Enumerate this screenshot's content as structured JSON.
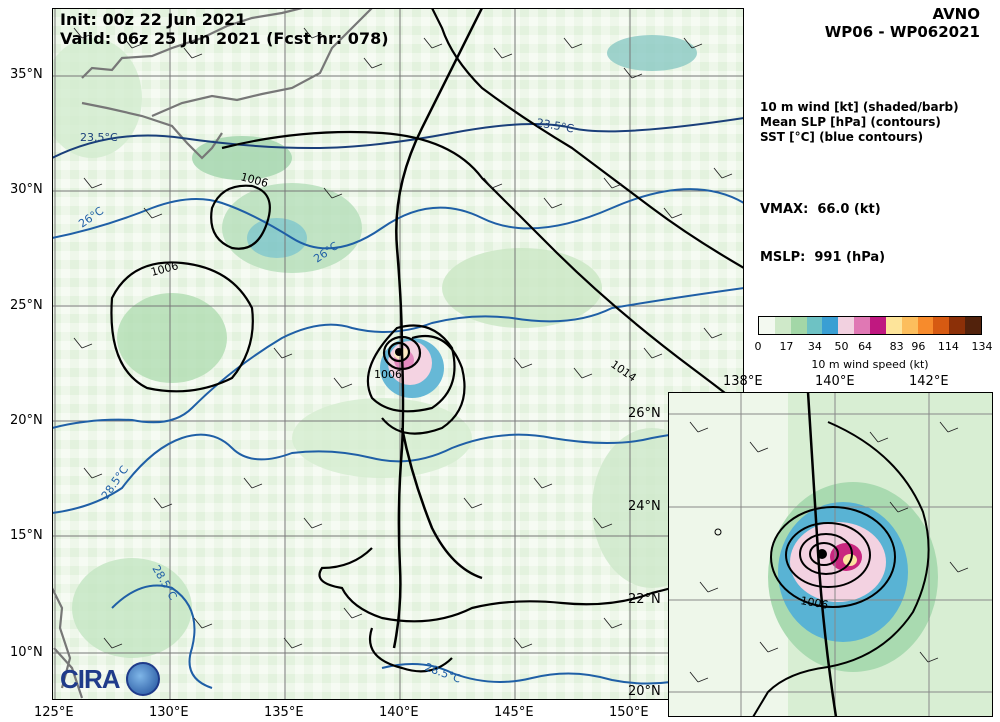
{
  "header": {
    "init": "Init:   00z 22 Jun 2021",
    "valid": "Valid: 06z 25 Jun 2021 (Fcst hr: 078)",
    "model": "AVNO",
    "storm": "WP06 - WP062021"
  },
  "legend": {
    "line1": "10 m wind [kt] (shaded/barb)",
    "line2": "Mean SLP [hPa] (contours)",
    "line3": "SST [°C] (blue contours)"
  },
  "stats": {
    "vmax": "VMAX:  66.0 (kt)",
    "mslp": "MSLP:  991 (hPa)"
  },
  "colorbar": {
    "ticks": [
      "0",
      "17",
      "34",
      "50",
      "64",
      "83",
      "96",
      "114",
      "134"
    ],
    "label": "10 m wind speed (kt)",
    "colors": [
      "#f3f9f0",
      "#cfe9c9",
      "#a3d7a7",
      "#6ec2c4",
      "#3a9fd3",
      "#f2d1e0",
      "#e078b4",
      "#c01880",
      "#fde49a",
      "#fcbe5d",
      "#f78b2c",
      "#d65a12",
      "#8c3008",
      "#52220c"
    ]
  },
  "main_map": {
    "lat_labels": [
      "35°N",
      "30°N",
      "25°N",
      "20°N",
      "15°N",
      "10°N"
    ],
    "lon_labels": [
      "125°E",
      "130°E",
      "135°E",
      "140°E",
      "145°E",
      "150°E"
    ],
    "slp_labels": [
      "1006",
      "1006",
      "1014",
      "1006"
    ],
    "sst_labels": [
      "23.5°C",
      "23.5°C",
      "26°C",
      "26°C",
      "28.5°C",
      "28.5°C",
      "28.5°C"
    ]
  },
  "inset_map": {
    "lat_labels": [
      "26°N",
      "24°N",
      "22°N",
      "20°N"
    ],
    "lon_labels": [
      "138°E",
      "140°E",
      "142°E"
    ],
    "slp_label": "1006"
  },
  "logo": {
    "text": "CIRA"
  }
}
